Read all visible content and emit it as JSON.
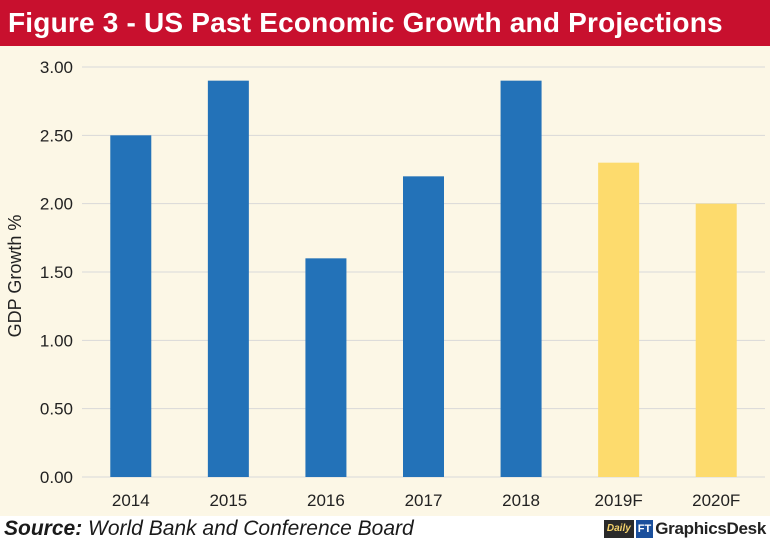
{
  "title": "Figure 3 - US Past Economic Growth and Projections",
  "footer": {
    "source_label": "Source:",
    "source_text": " World Bank and Conference Board",
    "logo_daily": "Daily",
    "logo_ft": "FT",
    "logo_desk": "GraphicsDesk"
  },
  "colors": {
    "title_bg": "#c8102e",
    "actual_bar": "#2372b8",
    "forecast_bar": "#fddb6d",
    "background": "#fcf7e6"
  },
  "chart_data": {
    "type": "bar",
    "categories": [
      "2014",
      "2015",
      "2016",
      "2017",
      "2018",
      "2019F",
      "2020F"
    ],
    "values": [
      2.5,
      2.9,
      1.6,
      2.2,
      2.9,
      2.3,
      2.0
    ],
    "forecast": [
      false,
      false,
      false,
      false,
      false,
      true,
      true
    ],
    "ylabel": "GDP Growth %",
    "xlabel": "",
    "ylim": [
      0,
      3
    ],
    "yticks": [
      "0.00",
      "0.50",
      "1.00",
      "1.50",
      "2.00",
      "2.50",
      "3.00"
    ],
    "grid": true
  }
}
